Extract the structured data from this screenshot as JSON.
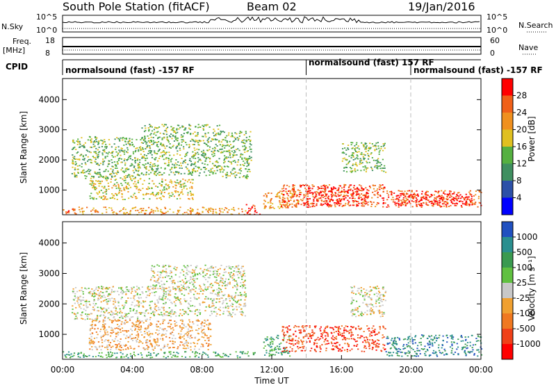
{
  "header": {
    "title": "South Pole Station (fitACF)",
    "beam": "Beam 02",
    "date": "19/Jan/2016"
  },
  "strips": {
    "nsky_label": "N.Sky",
    "nsky_ticks": [
      "10^5",
      "10^0"
    ],
    "nsearch_label": "N.Search",
    "nsearch_ticks": [
      "10^5",
      "10^0"
    ],
    "freq_label_1": "Freq.",
    "freq_label_2": "[MHz]",
    "freq_ticks": [
      "18",
      "8"
    ],
    "nave_label": "Nave",
    "nave_ticks": [
      "60",
      "0"
    ],
    "cpid_label": "CPID",
    "cpid_segments": [
      {
        "text": "normalsound (fast) -157 RF",
        "start_hour": 0
      },
      {
        "text": "normalsound (fast) 157 RF",
        "start_hour": 14
      },
      {
        "text": "normalsound (fast) -157 RF",
        "start_hour": 20
      }
    ]
  },
  "chart_data": [
    {
      "type": "heatmap",
      "name": "power",
      "xlabel": "",
      "ylabel": "Slant Range [km]",
      "xlim": [
        0,
        24
      ],
      "ylim": [
        180,
        4700
      ],
      "yticks": [
        1000,
        2000,
        3000,
        4000
      ],
      "colorbar": {
        "label": "Power [dB]",
        "ticks": [
          4,
          8,
          12,
          16,
          20,
          24,
          28
        ],
        "range": [
          0,
          32
        ],
        "colors": [
          "#0000ff",
          "#2c50a8",
          "#3f8f60",
          "#55b040",
          "#e0c020",
          "#f0901e",
          "#f06018",
          "#ff0000"
        ]
      },
      "regions": [
        {
          "t0": 0.0,
          "t1": 0.8,
          "r0": 200,
          "r1": 420,
          "level": 6
        },
        {
          "t0": 0.8,
          "t1": 10.5,
          "r0": 200,
          "r1": 450,
          "level": 5
        },
        {
          "t0": 10.5,
          "t1": 11.3,
          "r0": 200,
          "r1": 550,
          "level": 7
        },
        {
          "t0": 0.5,
          "t1": 4.5,
          "r0": 1400,
          "r1": 2800,
          "level": 3
        },
        {
          "t0": 4.5,
          "t1": 9.0,
          "r0": 1500,
          "r1": 3200,
          "level": 3
        },
        {
          "t0": 1.5,
          "t1": 7.5,
          "r0": 700,
          "r1": 1400,
          "level": 4
        },
        {
          "t0": 9.0,
          "t1": 10.8,
          "r0": 1400,
          "r1": 3000,
          "level": 3
        },
        {
          "t0": 11.5,
          "t1": 13.5,
          "r0": 400,
          "r1": 1000,
          "level": 5
        },
        {
          "t0": 12.5,
          "t1": 18.5,
          "r0": 450,
          "r1": 1200,
          "level": 6
        },
        {
          "t0": 14.0,
          "t1": 17.5,
          "r0": 500,
          "r1": 1100,
          "level": 7
        },
        {
          "t0": 16.0,
          "t1": 18.5,
          "r0": 1600,
          "r1": 2600,
          "level": 3
        },
        {
          "t0": 18.5,
          "t1": 24.0,
          "r0": 450,
          "r1": 1000,
          "level": 6
        },
        {
          "t0": 19.0,
          "t1": 23.5,
          "r0": 500,
          "r1": 900,
          "level": 7
        }
      ]
    },
    {
      "type": "heatmap",
      "name": "velocity",
      "xlabel": "Time UT",
      "ylabel": "Slant Range [km]",
      "xlim": [
        0,
        24
      ],
      "ylim": [
        180,
        4700
      ],
      "yticks": [
        1000,
        2000,
        3000,
        4000
      ],
      "xticks": [
        "00:00",
        "04:00",
        "08:00",
        "12:00",
        "16:00",
        "20:00",
        "00:00"
      ],
      "colorbar": {
        "label": "Velocity [m s⁻¹]",
        "ticks": [
          "1000",
          "500",
          "100",
          "25",
          "-25",
          "-100",
          "-500",
          "-1000"
        ],
        "colors": [
          "#2050c0",
          "#2a8f8f",
          "#3a9a50",
          "#60c040",
          "#c8c8c8",
          "#f0a030",
          "#f07820",
          "#f04018",
          "#ff0000"
        ]
      },
      "regions": [
        {
          "t0": 0.0,
          "t1": 11.0,
          "r0": 250,
          "r1": 450,
          "level": 2
        },
        {
          "t0": 0.5,
          "t1": 5.0,
          "r0": 1500,
          "r1": 2600,
          "level": 4
        },
        {
          "t0": 5.0,
          "t1": 10.5,
          "r0": 1600,
          "r1": 3300,
          "level": 4
        },
        {
          "t0": 1.5,
          "t1": 8.5,
          "r0": 500,
          "r1": 1500,
          "level": 5
        },
        {
          "t0": 11.5,
          "t1": 13.0,
          "r0": 300,
          "r1": 1000,
          "level": 2
        },
        {
          "t0": 12.5,
          "t1": 18.5,
          "r0": 450,
          "r1": 1300,
          "level": 7
        },
        {
          "t0": 16.5,
          "t1": 18.5,
          "r0": 1600,
          "r1": 2600,
          "level": 4
        },
        {
          "t0": 18.5,
          "t1": 24.0,
          "r0": 300,
          "r1": 1000,
          "level": 1
        }
      ]
    }
  ]
}
